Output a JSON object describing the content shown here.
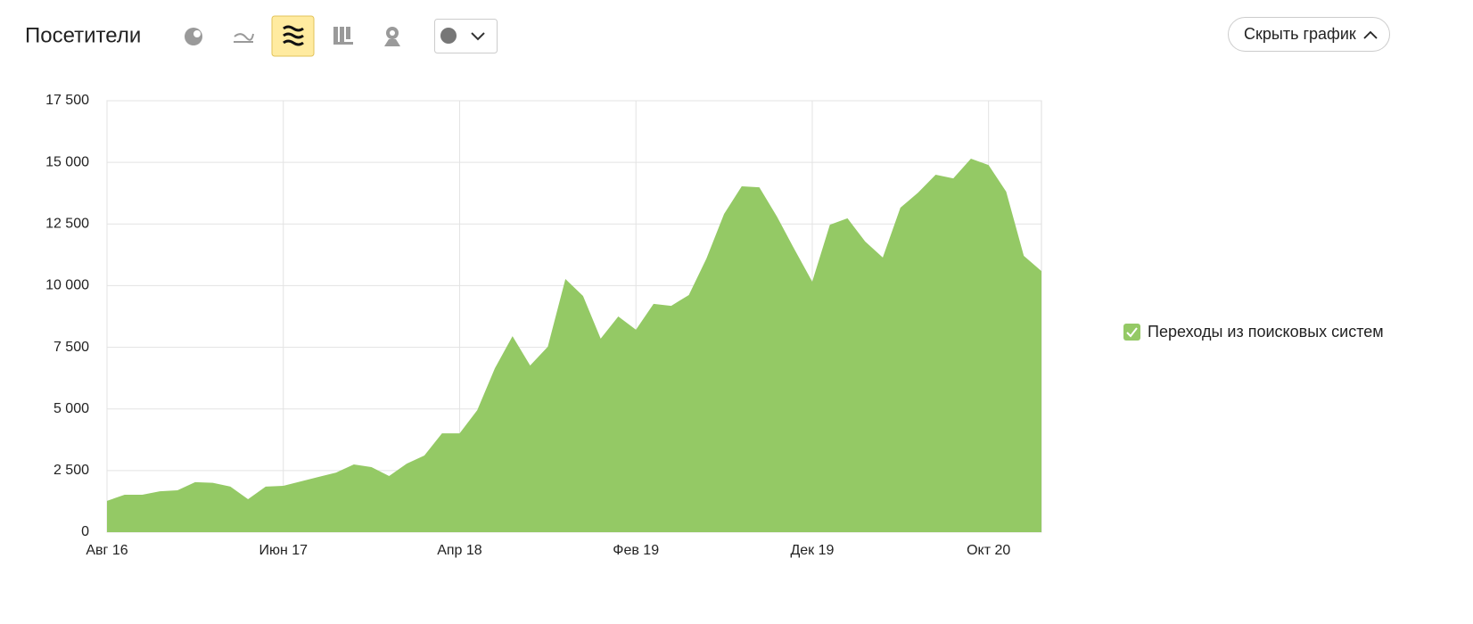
{
  "title": "Посетители",
  "hide_button": "Скрыть график",
  "chart_data": {
    "type": "area",
    "categories": [
      "Авг 16",
      null,
      null,
      null,
      null,
      null,
      null,
      null,
      null,
      null,
      "Июн 17",
      null,
      null,
      null,
      null,
      null,
      null,
      null,
      null,
      null,
      "Апр 18",
      null,
      null,
      null,
      null,
      null,
      null,
      null,
      null,
      null,
      "Фев 19",
      null,
      null,
      null,
      null,
      null,
      null,
      null,
      null,
      null,
      "Дек 19",
      null,
      null,
      null,
      null,
      null,
      null,
      null,
      null,
      null,
      "Окт 20",
      null,
      null,
      null
    ],
    "series": [
      {
        "name": "Переходы из поисковых систем",
        "color": "#94c965",
        "values": [
          1270,
          1520,
          1520,
          1660,
          1700,
          2030,
          2000,
          1850,
          1340,
          1850,
          1880,
          2060,
          2240,
          2420,
          2750,
          2640,
          2280,
          2780,
          3110,
          4010,
          4010,
          4950,
          6650,
          7950,
          6760,
          7520,
          10270,
          9580,
          7850,
          8750,
          8210,
          9260,
          9180,
          9620,
          11100,
          12910,
          14030,
          13990,
          12800,
          11460,
          10160,
          12470,
          12730,
          11790,
          11140,
          13160,
          13770,
          14500,
          14350,
          15150,
          14890,
          13810,
          11210,
          10590
        ]
      }
    ],
    "ylim": [
      0,
      17500
    ],
    "yticks": [
      0,
      {
        "value": 2500,
        "label": "2 500"
      },
      {
        "value": 5000,
        "label": "5 000"
      },
      {
        "value": 7500,
        "label": "7 500"
      },
      {
        "value": 10000,
        "label": "10 000"
      },
      {
        "value": 12500,
        "label": "12 500"
      },
      {
        "value": 15000,
        "label": "15 000"
      },
      {
        "value": 17500,
        "label": "17 500"
      }
    ],
    "grid": true,
    "legend": "right"
  }
}
